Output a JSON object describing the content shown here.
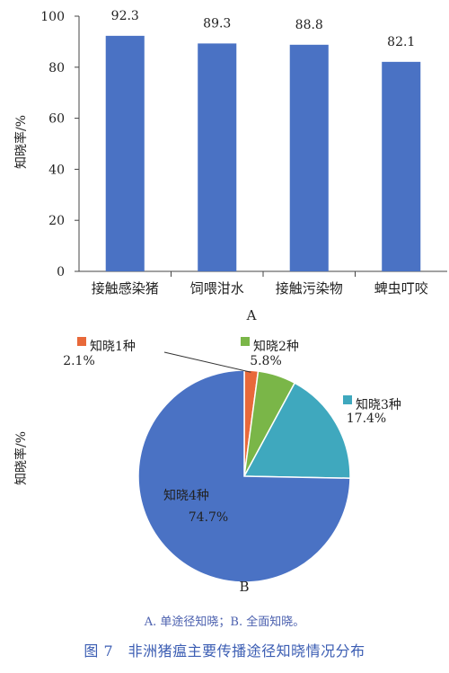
{
  "chart_data": [
    {
      "type": "bar",
      "panel": "A",
      "ylabel": "知晓率/%",
      "ylim": [
        0,
        100
      ],
      "yticks": [
        0,
        20,
        40,
        60,
        80,
        100
      ],
      "grid": false,
      "categories": [
        "接触感染猪",
        "饲喂泔水",
        "接触污染物",
        "蜱虫叮咬"
      ],
      "values": [
        92.3,
        89.3,
        88.8,
        82.1
      ],
      "value_labels": [
        "92.3",
        "89.3",
        "88.8",
        "82.1"
      ],
      "bar_color": "#4a72c4"
    },
    {
      "type": "pie",
      "panel": "B",
      "ylabel": "知晓率/%",
      "slices": [
        {
          "name": "知晓1种",
          "value": 2.1,
          "label": "2.1%",
          "color": "#e8693a"
        },
        {
          "name": "知晓2种",
          "value": 5.8,
          "label": "5.8%",
          "color": "#7ab648"
        },
        {
          "name": "知晓3种",
          "value": 17.4,
          "label": "17.4%",
          "color": "#3fa8be"
        },
        {
          "name": "知晓4种",
          "value": 74.7,
          "label": "74.7%",
          "color": "#4a72c4"
        }
      ]
    }
  ],
  "notes": "A. 单途径知晓；B. 全面知晓。",
  "figure_title": "图 7　非洲猪瘟主要传播途径知晓情况分布"
}
